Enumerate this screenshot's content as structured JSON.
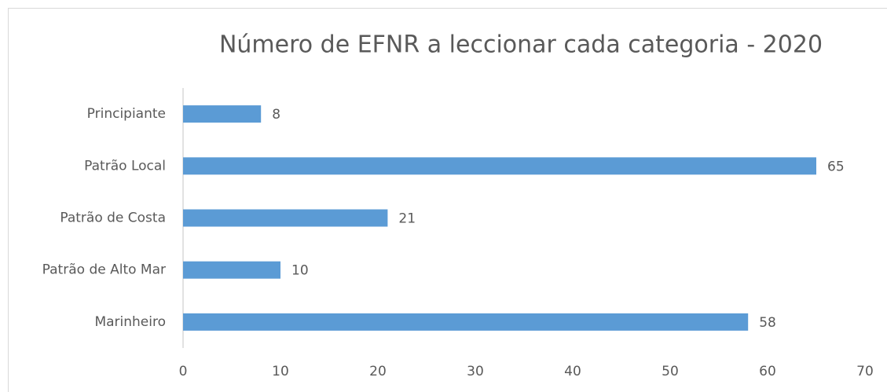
{
  "chart_data": {
    "type": "bar",
    "orientation": "horizontal",
    "title": "Número de EFNR a leccionar cada categoria - 2020",
    "categories": [
      "Principiante",
      "Patrão Local",
      "Patrão de Costa",
      "Patrão de Alto Mar",
      "Marinheiro"
    ],
    "values": [
      8,
      65,
      21,
      10,
      58
    ],
    "color": "#5b9bd5",
    "xlim": [
      0,
      70
    ],
    "xticks": [
      0,
      10,
      20,
      30,
      40,
      50,
      60,
      70
    ],
    "grid": false
  }
}
